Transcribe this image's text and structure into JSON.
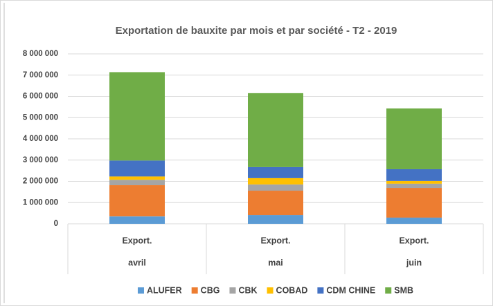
{
  "chart_data": {
    "type": "stacked_bar",
    "title": "Exportation de bauxite par mois et par société - T2 - 2019",
    "categories": [
      "avril",
      "mai",
      "juin"
    ],
    "subcategories": [
      "Export.",
      "Export.",
      "Export."
    ],
    "series": [
      {
        "name": "ALUFER",
        "color": "#5b9bd5",
        "values": [
          350000,
          420000,
          290000
        ]
      },
      {
        "name": "CBG",
        "color": "#ed7d31",
        "values": [
          1470000,
          1140000,
          1400000
        ]
      },
      {
        "name": "CBK",
        "color": "#a5a5a5",
        "values": [
          250000,
          290000,
          200000
        ]
      },
      {
        "name": "COBAD",
        "color": "#ffc000",
        "values": [
          160000,
          300000,
          130000
        ]
      },
      {
        "name": "CDM CHINE",
        "color": "#4472c4",
        "values": [
          750000,
          520000,
          550000
        ]
      },
      {
        "name": "SMB",
        "color": "#70ad47",
        "values": [
          4160000,
          3480000,
          2860000
        ]
      }
    ],
    "ylim": [
      0,
      8000000
    ],
    "yticks": [
      0,
      {
        "value": 1000000,
        "label": "1 000 000"
      },
      {
        "value": 2000000,
        "label": "2 000 000"
      },
      {
        "value": 3000000,
        "label": "3 000 000"
      },
      {
        "value": 4000000,
        "label": "4 000 000"
      },
      {
        "value": 5000000,
        "label": "5 000 000"
      },
      {
        "value": 6000000,
        "label": "6 000 000"
      },
      {
        "value": 7000000,
        "label": "7 000 000"
      },
      {
        "value": 8000000,
        "label": "8 000 000"
      }
    ],
    "grid": true,
    "legend": "bottom"
  }
}
